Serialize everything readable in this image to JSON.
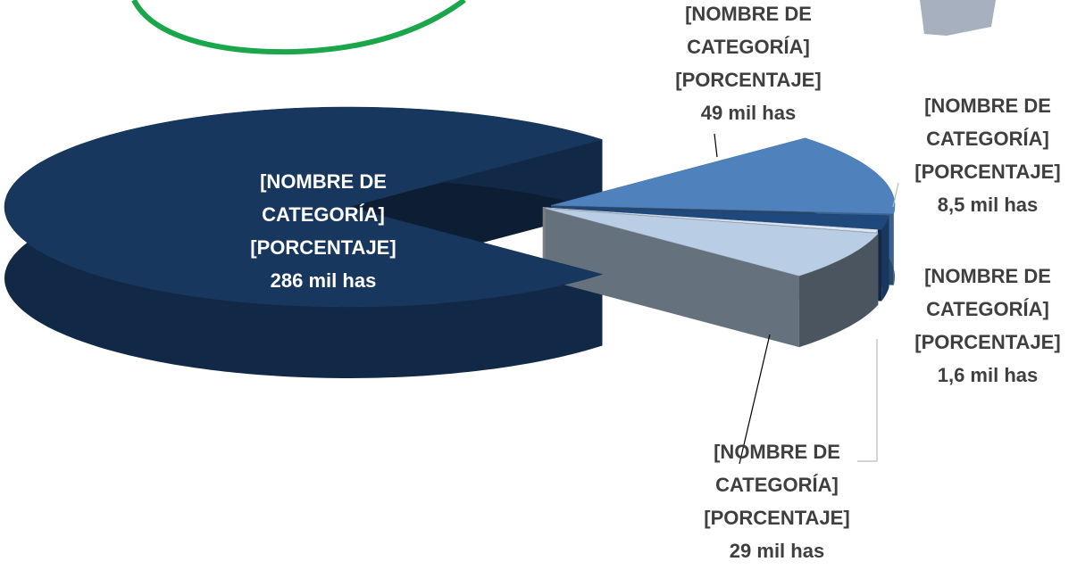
{
  "chart_data": {
    "type": "pie3d",
    "categories": [
      "[NOMBRE DE CATEGORÍA]",
      "[NOMBRE DE CATEGORÍA]",
      "[NOMBRE DE CATEGORÍA]",
      "[NOMBRE DE CATEGORÍA]",
      "[NOMBRE DE CATEGORÍA]"
    ],
    "percent_labels": [
      "[PORCENTAJE]",
      "[PORCENTAJE]",
      "[PORCENTAJE]",
      "[PORCENTAJE]",
      "[PORCENTAJE]"
    ],
    "values": [
      286,
      49,
      8.5,
      1.6,
      29
    ],
    "value_labels": [
      "286 mil has",
      "49 mil has",
      "8,5 mil has",
      "1,6 mil has",
      "29 mil has"
    ],
    "colors": [
      "#17375e",
      "#4f81bd",
      "#1f497d",
      "#dce6f2",
      "#b9cde5"
    ]
  }
}
